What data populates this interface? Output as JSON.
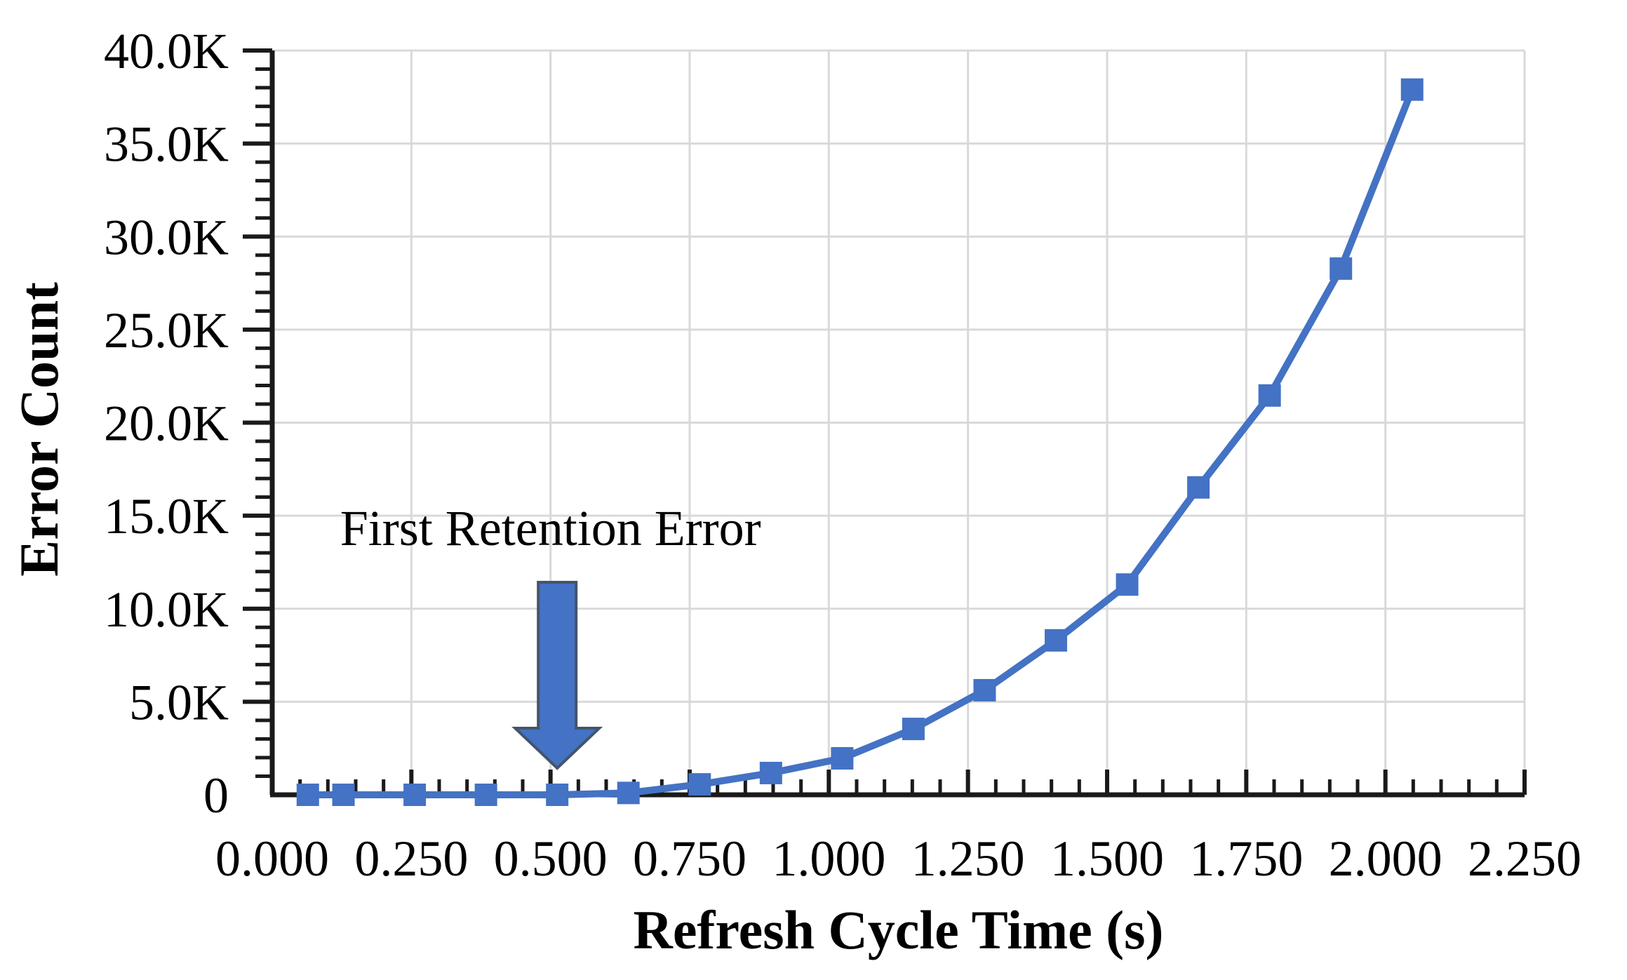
{
  "chart_data": {
    "type": "line",
    "title": "",
    "xlabel": "Refresh Cycle Time (s)",
    "ylabel": "Error Count",
    "grid": true,
    "legend_position": "none",
    "x_axis": {
      "min": 0,
      "max": 2.25,
      "major_step": 0.25,
      "minor_step": 0.05,
      "tick_labels": [
        "0.000",
        "0.250",
        "0.500",
        "0.750",
        "1.000",
        "1.250",
        "1.500",
        "1.750",
        "2.000",
        "2.250"
      ]
    },
    "y_axis": {
      "min": 0,
      "max": 40000,
      "major_step": 5000,
      "minor_step": 1000,
      "tick_labels": [
        "0",
        "5.0K",
        "10.0K",
        "15.0K",
        "20.0K",
        "25.0K",
        "30.0K",
        "35.0K",
        "40.0K"
      ]
    },
    "series": [
      {
        "name": "Error Count",
        "marker": "square",
        "points": [
          [
            0.064,
            0
          ],
          [
            0.128,
            0
          ],
          [
            0.256,
            0
          ],
          [
            0.384,
            0
          ],
          [
            0.512,
            1
          ],
          [
            0.64,
            100
          ],
          [
            0.768,
            560
          ],
          [
            0.896,
            1170
          ],
          [
            1.024,
            1960
          ],
          [
            1.152,
            3540
          ],
          [
            1.28,
            5620
          ],
          [
            1.408,
            8300
          ],
          [
            1.536,
            11300
          ],
          [
            1.664,
            16520
          ],
          [
            1.792,
            21460
          ],
          [
            1.92,
            28280
          ],
          [
            2.048,
            37900
          ]
        ]
      }
    ],
    "annotation": {
      "text": "First Retention Error",
      "arrow_points_to_x": 0.512
    },
    "colors": {
      "line": "#4472C4",
      "marker": "#4472C4",
      "arrow_fill": "#4472C4",
      "arrow_stroke": "#44546A",
      "grid": "#D9D9D9",
      "axis": "#1a1a1a",
      "text": "#000000"
    }
  }
}
